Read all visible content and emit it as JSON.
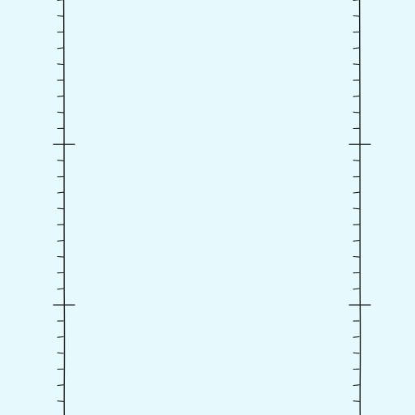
{
  "canvas": {
    "background": "#e6f9fc",
    "stroke": "#1a1a1a"
  },
  "rulers": {
    "count": 2,
    "minor_ticks_per_major": 10,
    "major_tick_count": 2
  }
}
